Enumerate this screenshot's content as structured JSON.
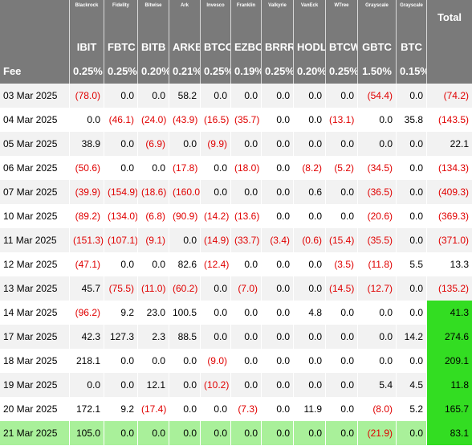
{
  "header": {
    "issuers": [
      "Blackrock",
      "Fidelity",
      "Bitwise",
      "Ark",
      "Invesco",
      "Franklin",
      "Valkyrie",
      "VanEck",
      "WTree",
      "Grayscale",
      "Grayscale"
    ],
    "total_label": "Total",
    "tickers": [
      "IBIT",
      "FBTC",
      "BITB",
      "ARKB",
      "BTCO",
      "EZBC",
      "BRRR",
      "HODL",
      "BTCW",
      "GBTC",
      "BTC"
    ],
    "fee_label": "Fee",
    "fees": [
      "0.25%",
      "0.25%",
      "0.20%",
      "0.21%",
      "0.25%",
      "0.19%",
      "0.25%",
      "0.20%",
      "0.25%",
      "1.50%",
      "0.15%"
    ]
  },
  "colors": {
    "header_bg": "#7a7a7a",
    "negative_text": "#e00000",
    "positive_total_bg": "#33dd22",
    "highlight_row_bg": "#a9f09a",
    "striped_row_bg": "#f2f2f2"
  },
  "rows": [
    {
      "date": "03 Mar 2025",
      "values": [
        "(78.0)",
        "0.0",
        "0.0",
        "58.2",
        "0.0",
        "0.0",
        "0.0",
        "0.0",
        "0.0",
        "(54.4)",
        "0.0"
      ],
      "total": "(74.2)"
    },
    {
      "date": "04 Mar 2025",
      "values": [
        "0.0",
        "(46.1)",
        "(24.0)",
        "(43.9)",
        "(16.5)",
        "(35.7)",
        "0.0",
        "0.0",
        "(13.1)",
        "0.0",
        "35.8"
      ],
      "total": "(143.5)"
    },
    {
      "date": "05 Mar 2025",
      "values": [
        "38.9",
        "0.0",
        "(6.9)",
        "0.0",
        "(9.9)",
        "0.0",
        "0.0",
        "0.0",
        "0.0",
        "0.0",
        "0.0"
      ],
      "total": "22.1"
    },
    {
      "date": "06 Mar 2025",
      "values": [
        "(50.6)",
        "0.0",
        "0.0",
        "(17.8)",
        "0.0",
        "(18.0)",
        "0.0",
        "(8.2)",
        "(5.2)",
        "(34.5)",
        "0.0"
      ],
      "total": "(134.3)"
    },
    {
      "date": "07 Mar 2025",
      "values": [
        "(39.9)",
        "(154.9)",
        "(18.6)",
        "(160.0)",
        "0.0",
        "0.0",
        "0.0",
        "0.6",
        "0.0",
        "(36.5)",
        "0.0"
      ],
      "total": "(409.3)"
    },
    {
      "date": "10 Mar 2025",
      "values": [
        "(89.2)",
        "(134.0)",
        "(6.8)",
        "(90.9)",
        "(14.2)",
        "(13.6)",
        "0.0",
        "0.0",
        "0.0",
        "(20.6)",
        "0.0"
      ],
      "total": "(369.3)"
    },
    {
      "date": "11 Mar 2025",
      "values": [
        "(151.3)",
        "(107.1)",
        "(9.1)",
        "0.0",
        "(14.9)",
        "(33.7)",
        "(3.4)",
        "(0.6)",
        "(15.4)",
        "(35.5)",
        "0.0"
      ],
      "total": "(371.0)"
    },
    {
      "date": "12 Mar 2025",
      "values": [
        "(47.1)",
        "0.0",
        "0.0",
        "82.6",
        "(12.4)",
        "0.0",
        "0.0",
        "0.0",
        "(3.5)",
        "(11.8)",
        "5.5"
      ],
      "total": "13.3"
    },
    {
      "date": "13 Mar 2025",
      "values": [
        "45.7",
        "(75.5)",
        "(11.0)",
        "(60.2)",
        "0.0",
        "(7.0)",
        "0.0",
        "0.0",
        "(14.5)",
        "(12.7)",
        "0.0"
      ],
      "total": "(135.2)"
    },
    {
      "date": "14 Mar 2025",
      "values": [
        "(96.2)",
        "9.2",
        "23.0",
        "100.5",
        "0.0",
        "0.0",
        "0.0",
        "4.8",
        "0.0",
        "0.0",
        "0.0"
      ],
      "total": "41.3",
      "total_green": true
    },
    {
      "date": "17 Mar 2025",
      "values": [
        "42.3",
        "127.3",
        "2.3",
        "88.5",
        "0.0",
        "0.0",
        "0.0",
        "0.0",
        "0.0",
        "0.0",
        "14.2"
      ],
      "total": "274.6",
      "total_green": true
    },
    {
      "date": "18 Mar 2025",
      "values": [
        "218.1",
        "0.0",
        "0.0",
        "0.0",
        "(9.0)",
        "0.0",
        "0.0",
        "0.0",
        "0.0",
        "0.0",
        "0.0"
      ],
      "total": "209.1",
      "total_green": true
    },
    {
      "date": "19 Mar 2025",
      "values": [
        "0.0",
        "0.0",
        "12.1",
        "0.0",
        "(10.2)",
        "0.0",
        "0.0",
        "0.0",
        "0.0",
        "5.4",
        "4.5"
      ],
      "total": "11.8",
      "total_green": true
    },
    {
      "date": "20 Mar 2025",
      "values": [
        "172.1",
        "9.2",
        "(17.4)",
        "0.0",
        "0.0",
        "(7.3)",
        "0.0",
        "11.9",
        "0.0",
        "(8.0)",
        "5.2"
      ],
      "total": "165.7",
      "total_green": true
    },
    {
      "date": "21 Mar 2025",
      "values": [
        "105.0",
        "0.0",
        "0.0",
        "0.0",
        "0.0",
        "0.0",
        "0.0",
        "0.0",
        "0.0",
        "(21.9)",
        "0.0"
      ],
      "total": "83.1",
      "total_green": true,
      "row_highlight": true
    }
  ]
}
